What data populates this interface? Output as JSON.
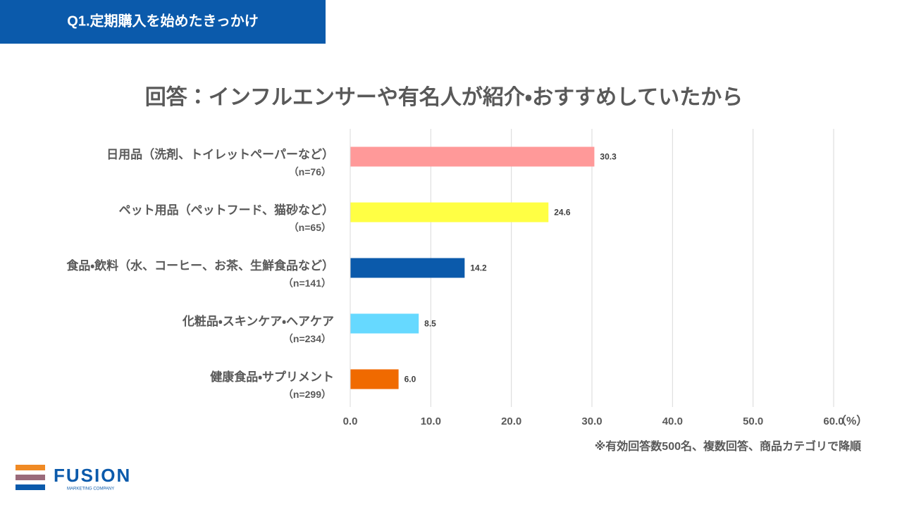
{
  "header": {
    "title": "Q1.定期購入を始めたきっかけ"
  },
  "chart_data": {
    "type": "barh",
    "title": "回答：インフルエンサーや有名人が紹介・おすすめしていたから",
    "categories": [
      "日用品（洗剤、トイレットペーパーなど）",
      "ペット用品（ペットフード、猫砂など）",
      "食品・飲料（水、コーヒー、お茶、生鮮食品など）",
      "化粧品・スキンケア・ヘアケア",
      "健康食品・サプリメント"
    ],
    "category_notes": [
      "（n=76）",
      "（n=65）",
      "（n=141）",
      "（n=234）",
      "（n=299）"
    ],
    "values": [
      30.3,
      24.6,
      14.2,
      8.5,
      6.0
    ],
    "value_labels": [
      "30.3",
      "24.6",
      "14.2",
      "8.5",
      "6.0"
    ],
    "colors": [
      "#ff9999",
      "#ffff44",
      "#0b5aab",
      "#66d9ff",
      "#f06a00"
    ],
    "xlim": [
      0,
      60
    ],
    "xticks": [
      {
        "value": 0,
        "label": "0.0"
      },
      {
        "value": 10,
        "label": "10.0"
      },
      {
        "value": 20,
        "label": "20.0"
      },
      {
        "value": 30,
        "label": "30.0"
      },
      {
        "value": 40,
        "label": "40.0"
      },
      {
        "value": 50,
        "label": "50.0"
      },
      {
        "value": 60,
        "label": "60.0"
      }
    ],
    "x_unit": "（%）",
    "grid": true
  },
  "footnote": "※有効回答数500名、複数回答、商品カテゴリで降順",
  "logo": {
    "name": "FUSION",
    "tagline": "MARKETING COMPANY"
  }
}
